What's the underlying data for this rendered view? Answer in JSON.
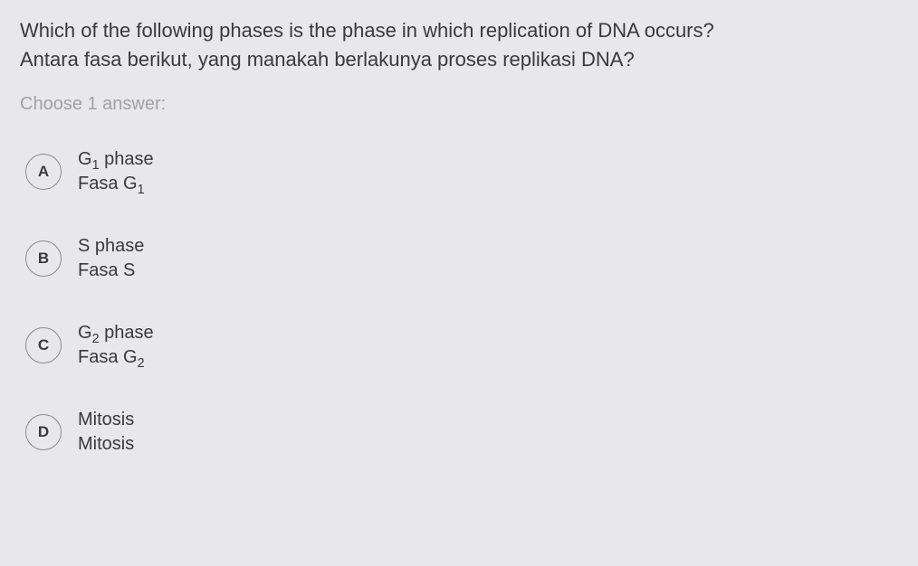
{
  "question": {
    "line1": "Which of the following phases is the phase in which replication of DNA occurs?",
    "line2": "Antara fasa berikut, yang manakah berlakunya proses replikasi DNA?"
  },
  "instruction": "Choose 1 answer:",
  "options": [
    {
      "letter": "A",
      "line1_pre": "G",
      "line1_sub": "1",
      "line1_post": " phase",
      "line2_pre": "Fasa G",
      "line2_sub": "1",
      "line2_post": ""
    },
    {
      "letter": "B",
      "line1_pre": "S phase",
      "line1_sub": "",
      "line1_post": "",
      "line2_pre": "Fasa S",
      "line2_sub": "",
      "line2_post": ""
    },
    {
      "letter": "C",
      "line1_pre": "G",
      "line1_sub": "2",
      "line1_post": " phase",
      "line2_pre": "Fasa G",
      "line2_sub": "2",
      "line2_post": ""
    },
    {
      "letter": "D",
      "line1_pre": "Mitosis",
      "line1_sub": "",
      "line1_post": "",
      "line2_pre": "Mitosis",
      "line2_sub": "",
      "line2_post": ""
    }
  ],
  "colors": {
    "background": "#e8e8ea",
    "text_primary": "#3a3a3e",
    "text_muted": "#a0a0a6",
    "circle_border": "#8a8a92"
  },
  "typography": {
    "question_fontsize": 22,
    "instruction_fontsize": 20,
    "option_fontsize": 20,
    "letter_fontsize": 17
  }
}
